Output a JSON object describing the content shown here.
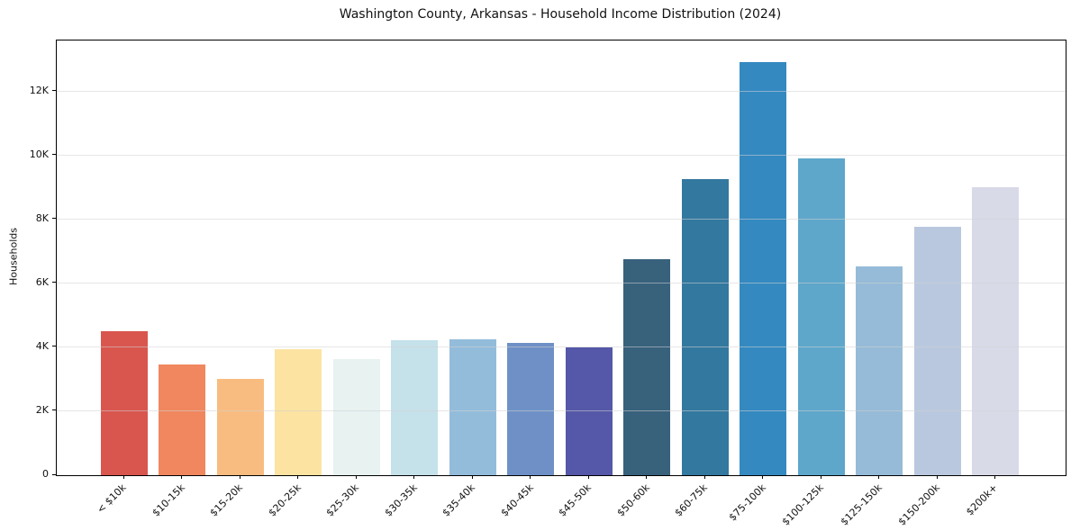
{
  "chart_data": {
    "type": "bar",
    "title": "Washington County, Arkansas - Household Income Distribution (2024)",
    "xlabel": "",
    "ylabel": "Households",
    "categories": [
      "< $10k",
      "$10-15k",
      "$15-20k",
      "$20-25k",
      "$25-30k",
      "$30-35k",
      "$35-40k",
      "$40-45k",
      "$45-50k",
      "$50-60k",
      "$60-75k",
      "$75-100k",
      "$100-125k",
      "$125-150k",
      "$150-200k",
      "$200k+"
    ],
    "values": [
      4500,
      3450,
      3000,
      3950,
      3640,
      4220,
      4260,
      4140,
      4000,
      6770,
      9260,
      12920,
      9920,
      6530,
      7780,
      9010
    ],
    "colors": [
      "#d9564f",
      "#f0875f",
      "#f9bc80",
      "#fce3a2",
      "#e7f2f1",
      "#c5e1ea",
      "#93bcdb",
      "#6e90c6",
      "#5557a8",
      "#38617c",
      "#33789f",
      "#3489c1",
      "#5ea7cb",
      "#96bbd8",
      "#b9c8df",
      "#d9dae8"
    ],
    "ylim": [
      0,
      13600
    ],
    "yticks": {
      "values": [
        0,
        2000,
        4000,
        6000,
        8000,
        10000,
        12000
      ],
      "labels": [
        "0",
        "2K",
        "4K",
        "6K",
        "8K",
        "10K",
        "12K"
      ]
    },
    "grid": "horizontal",
    "legend_position": "none",
    "background_color": "#ffffff",
    "frame_color": "#000000",
    "gridline_color": "#e8e8e8",
    "text_color": "#111111"
  }
}
